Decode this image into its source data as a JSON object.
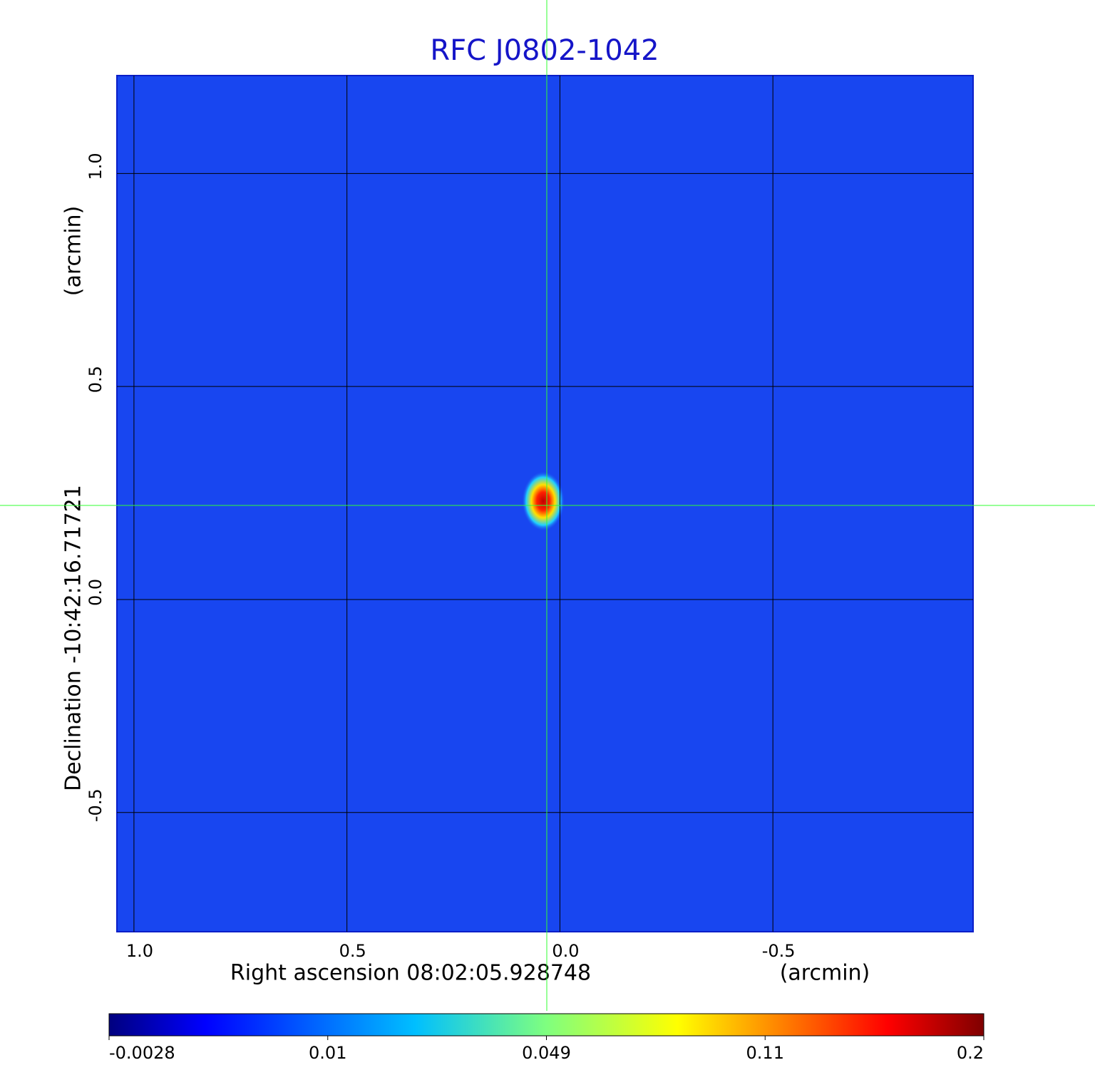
{
  "chart_data": {
    "type": "image",
    "title": "RFC J0802-1042",
    "x_label": "Right ascension  08:02:05.928748",
    "x_unit": "(arcmin)",
    "y_label": "Declination  -10:42:16.71721",
    "y_unit": "(arcmin)",
    "xlim": [
      1.04,
      -0.97
    ],
    "ylim": [
      -0.78,
      1.23
    ],
    "xticks": [
      {
        "value": 1,
        "label": "1.0"
      },
      0.5,
      {
        "value": 0,
        "label": "0.0"
      },
      -0.5
    ],
    "yticks": [
      1,
      0.5,
      0,
      -0.5
    ],
    "ytick_labels": [
      "1.0",
      "0.5",
      "0.0",
      "-0.5"
    ],
    "grid": true,
    "colormap": "jet",
    "clim": [
      -0.0028,
      0.2
    ],
    "colorbar_ticks": [
      -0.0028,
      0.01,
      0.049,
      0.11,
      0.2
    ]
  }
}
